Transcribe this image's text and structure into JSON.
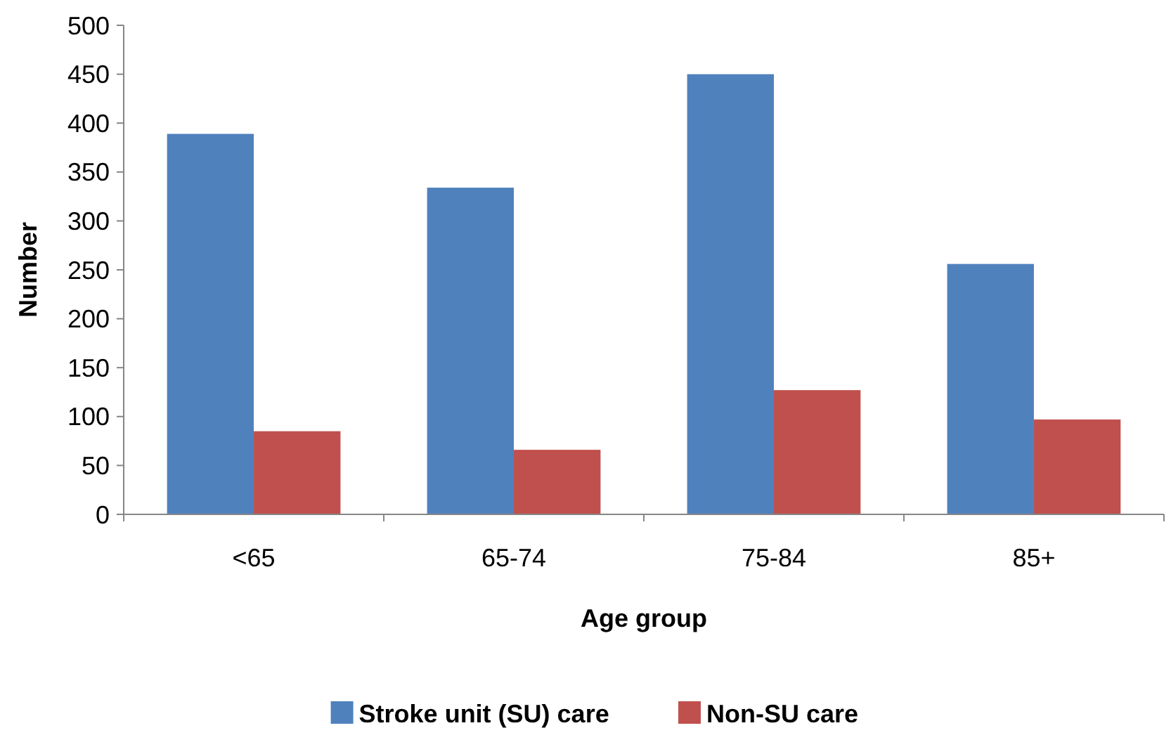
{
  "chart_data": {
    "type": "bar",
    "xlabel": "Age group",
    "ylabel": "Number",
    "categories": [
      "<65",
      "65-74",
      "75-84",
      "85+"
    ],
    "series": [
      {
        "name": "Stroke unit (SU) care",
        "color": "#4f81bd",
        "values": [
          389,
          334,
          450,
          256
        ]
      },
      {
        "name": "Non-SU care",
        "color": "#c0504d",
        "values": [
          85,
          66,
          127,
          97
        ]
      }
    ],
    "ylim": [
      0,
      500
    ],
    "yticks": [
      0,
      50,
      100,
      150,
      200,
      250,
      300,
      350,
      400,
      450,
      500
    ],
    "grid": false,
    "legend": "bottom"
  }
}
